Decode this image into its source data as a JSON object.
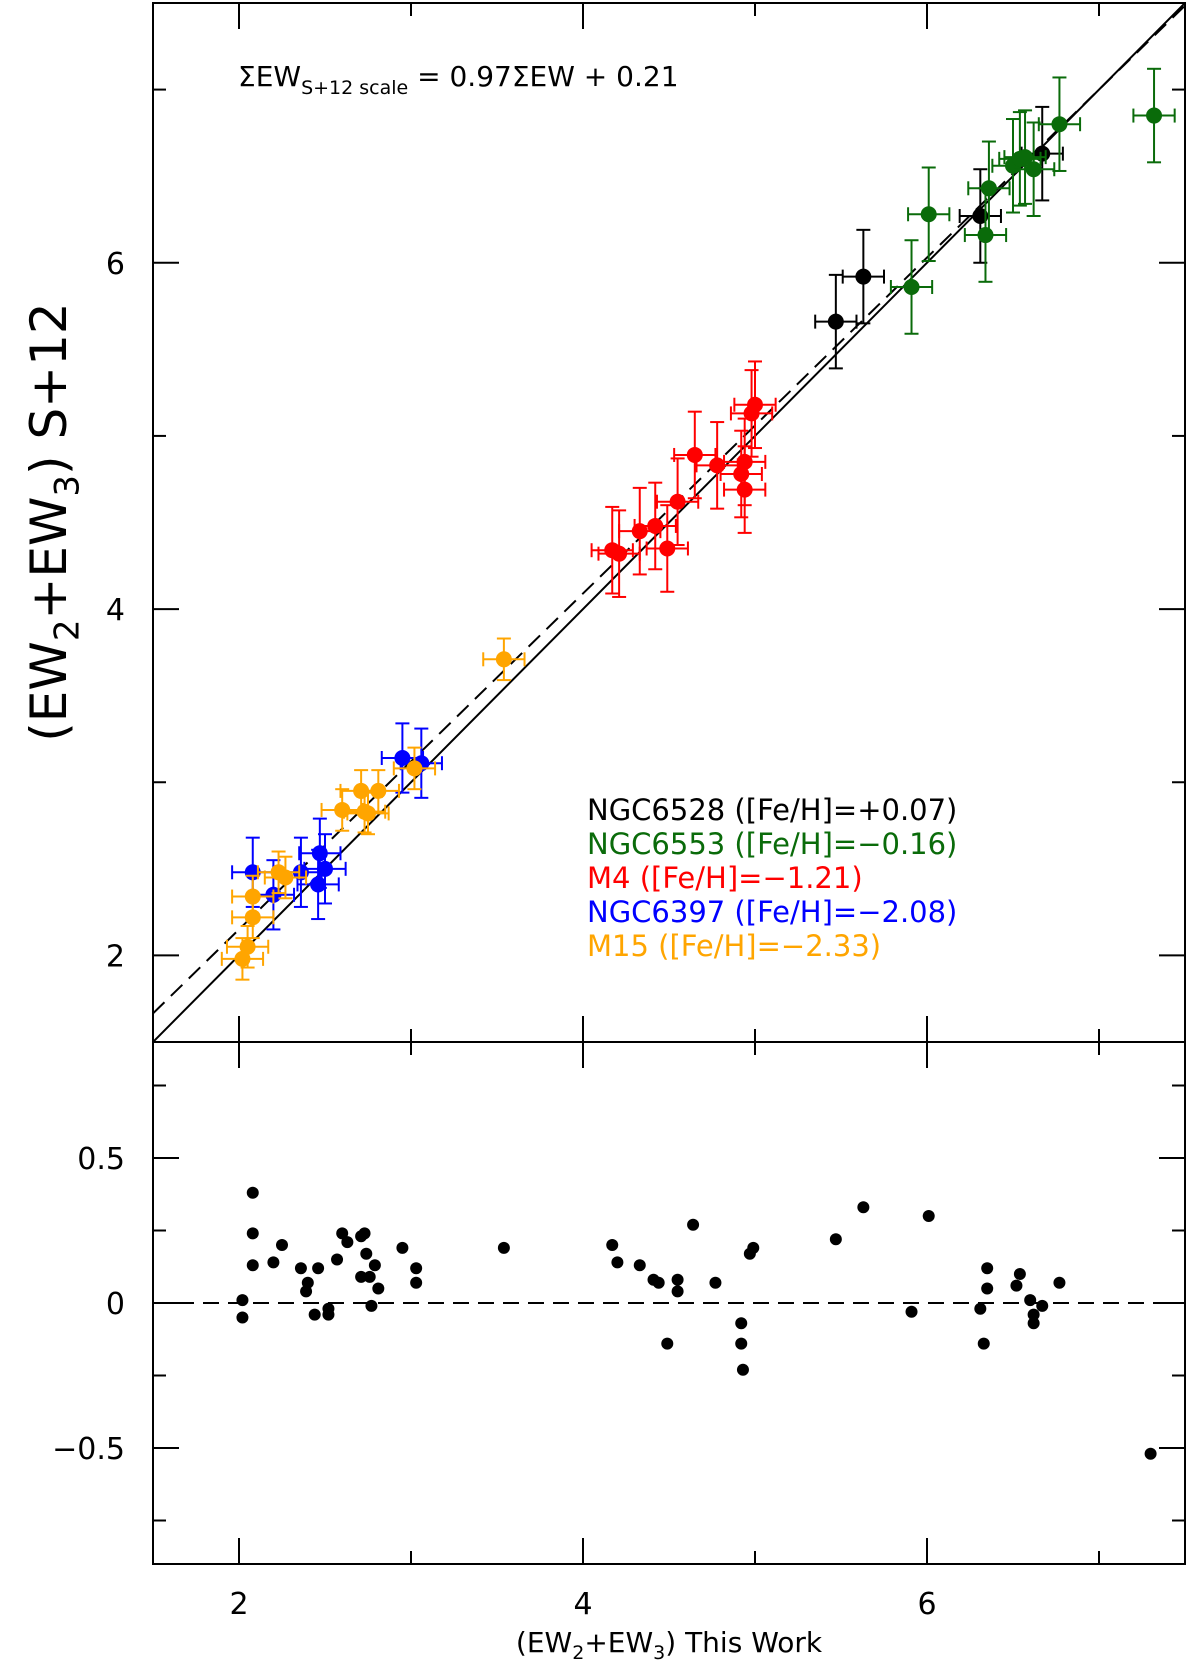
{
  "chart_data": [
    {
      "type": "scatter",
      "annotation": {
        "main": "ΣEW",
        "sub": "S+12 scale",
        "rest": " = 0.97ΣEW + 0.21"
      },
      "ylabel": {
        "a": "(EW",
        "s1": "2",
        "b": "+EW",
        "s2": "3",
        "c": ") S+12"
      },
      "xlim": [
        1.5,
        7.5
      ],
      "ylim": [
        1.5,
        7.5
      ],
      "xticks": [
        2,
        4,
        6
      ],
      "xminorticks": [
        3,
        5,
        7
      ],
      "yticks": [
        2,
        4,
        6
      ],
      "yminorticks": [
        3,
        5,
        7
      ],
      "lines": [
        {
          "slope": 0.97,
          "intercept": 0.21,
          "style": "dashed"
        },
        {
          "slope": 1,
          "intercept": 0,
          "style": "solid"
        }
      ],
      "series": [
        {
          "name": "NGC6528 ([Fe/H]=+0.07)",
          "color": "#000000",
          "xerr": 0.12,
          "yerr": 0.27,
          "x": [
            5.47,
            5.63,
            6.31,
            6.67
          ],
          "values": [
            5.66,
            5.92,
            6.27,
            6.63
          ]
        },
        {
          "name": "NGC6553 ([Fe/H]=−0.16)",
          "color": "#0a6b0a",
          "xerr": 0.12,
          "yerr": 0.27,
          "x": [
            6.01,
            5.91,
            6.36,
            6.34,
            6.5,
            6.54,
            6.57,
            6.62,
            6.77,
            7.32
          ],
          "values": [
            6.28,
            5.86,
            6.43,
            6.16,
            6.56,
            6.6,
            6.61,
            6.54,
            6.8,
            6.85
          ]
        },
        {
          "name": "M4 ([Fe/H]=−1.21)",
          "color": "#ff0000",
          "xerr": 0.12,
          "yerr": 0.25,
          "x": [
            4.17,
            4.21,
            4.33,
            4.42,
            4.49,
            4.55,
            4.65,
            4.78,
            4.94,
            4.92,
            4.94,
            4.98,
            5.0
          ],
          "values": [
            4.34,
            4.32,
            4.45,
            4.48,
            4.35,
            4.62,
            4.89,
            4.83,
            4.85,
            4.78,
            4.69,
            5.13,
            5.18
          ]
        },
        {
          "name": "NGC6397 ([Fe/H]=−2.08)",
          "color": "#0000ff",
          "xerr": 0.12,
          "yerr": 0.2,
          "x": [
            2.08,
            2.2,
            2.36,
            2.46,
            2.47,
            2.5,
            2.95,
            3.06
          ],
          "values": [
            2.48,
            2.35,
            2.48,
            2.41,
            2.59,
            2.5,
            3.14,
            3.11
          ]
        },
        {
          "name": "M15 ([Fe/H]=−2.33)",
          "color": "#ffa500",
          "xerr": 0.12,
          "yerr": 0.12,
          "x": [
            2.02,
            2.05,
            2.08,
            2.08,
            2.23,
            2.27,
            2.6,
            2.71,
            2.73,
            2.75,
            2.81,
            3.02,
            3.54
          ],
          "values": [
            1.98,
            2.05,
            2.34,
            2.22,
            2.48,
            2.45,
            2.84,
            2.95,
            2.83,
            2.82,
            2.95,
            3.08,
            3.71
          ]
        }
      ]
    },
    {
      "type": "residual",
      "xlabel": {
        "a": "(EW",
        "s1": "2",
        "b": "+EW",
        "s2": "3",
        "c": ") This Work"
      },
      "xlim": [
        1.5,
        7.5
      ],
      "ylim": [
        -0.9,
        0.9
      ],
      "xticks": [
        2,
        4,
        6
      ],
      "xminorticks": [
        3,
        5,
        7
      ],
      "yticks": [
        {
          "value": -0.5,
          "label": "−0.5"
        },
        0,
        0.5
      ],
      "yminorticks": [
        -0.75,
        -0.25,
        0.25,
        0.75
      ],
      "hline": 0,
      "color": "#000000",
      "x": [
        2.02,
        2.02,
        2.08,
        2.08,
        2.08,
        2.2,
        2.25,
        2.36,
        2.4,
        2.39,
        2.46,
        2.44,
        2.52,
        2.52,
        2.57,
        2.6,
        2.63,
        2.71,
        2.73,
        2.71,
        2.74,
        2.76,
        2.79,
        2.77,
        2.81,
        2.95,
        3.03,
        3.03,
        3.54,
        4.17,
        4.2,
        4.33,
        4.41,
        4.44,
        4.49,
        4.55,
        4.55,
        4.64,
        4.77,
        4.92,
        4.92,
        4.93,
        4.97,
        4.99,
        5.47,
        5.63,
        5.91,
        6.01,
        6.31,
        6.33,
        6.35,
        6.35,
        6.54,
        6.52,
        6.6,
        6.62,
        6.62,
        6.67,
        6.77,
        7.3
      ],
      "values": [
        0.01,
        -0.05,
        0.38,
        0.24,
        0.13,
        0.14,
        0.2,
        0.12,
        0.07,
        0.04,
        0.12,
        -0.04,
        -0.02,
        -0.04,
        0.15,
        0.24,
        0.21,
        0.23,
        0.24,
        0.09,
        0.17,
        0.09,
        0.13,
        -0.01,
        0.05,
        0.19,
        0.12,
        0.07,
        0.19,
        0.2,
        0.14,
        0.13,
        0.08,
        0.07,
        -0.14,
        0.04,
        0.08,
        0.27,
        0.07,
        -0.07,
        -0.14,
        -0.23,
        0.17,
        0.19,
        0.22,
        0.33,
        -0.03,
        0.3,
        -0.02,
        -0.14,
        0.12,
        0.05,
        0.1,
        0.06,
        0.01,
        -0.04,
        -0.07,
        -0.01,
        0.07,
        -0.52
      ]
    }
  ]
}
